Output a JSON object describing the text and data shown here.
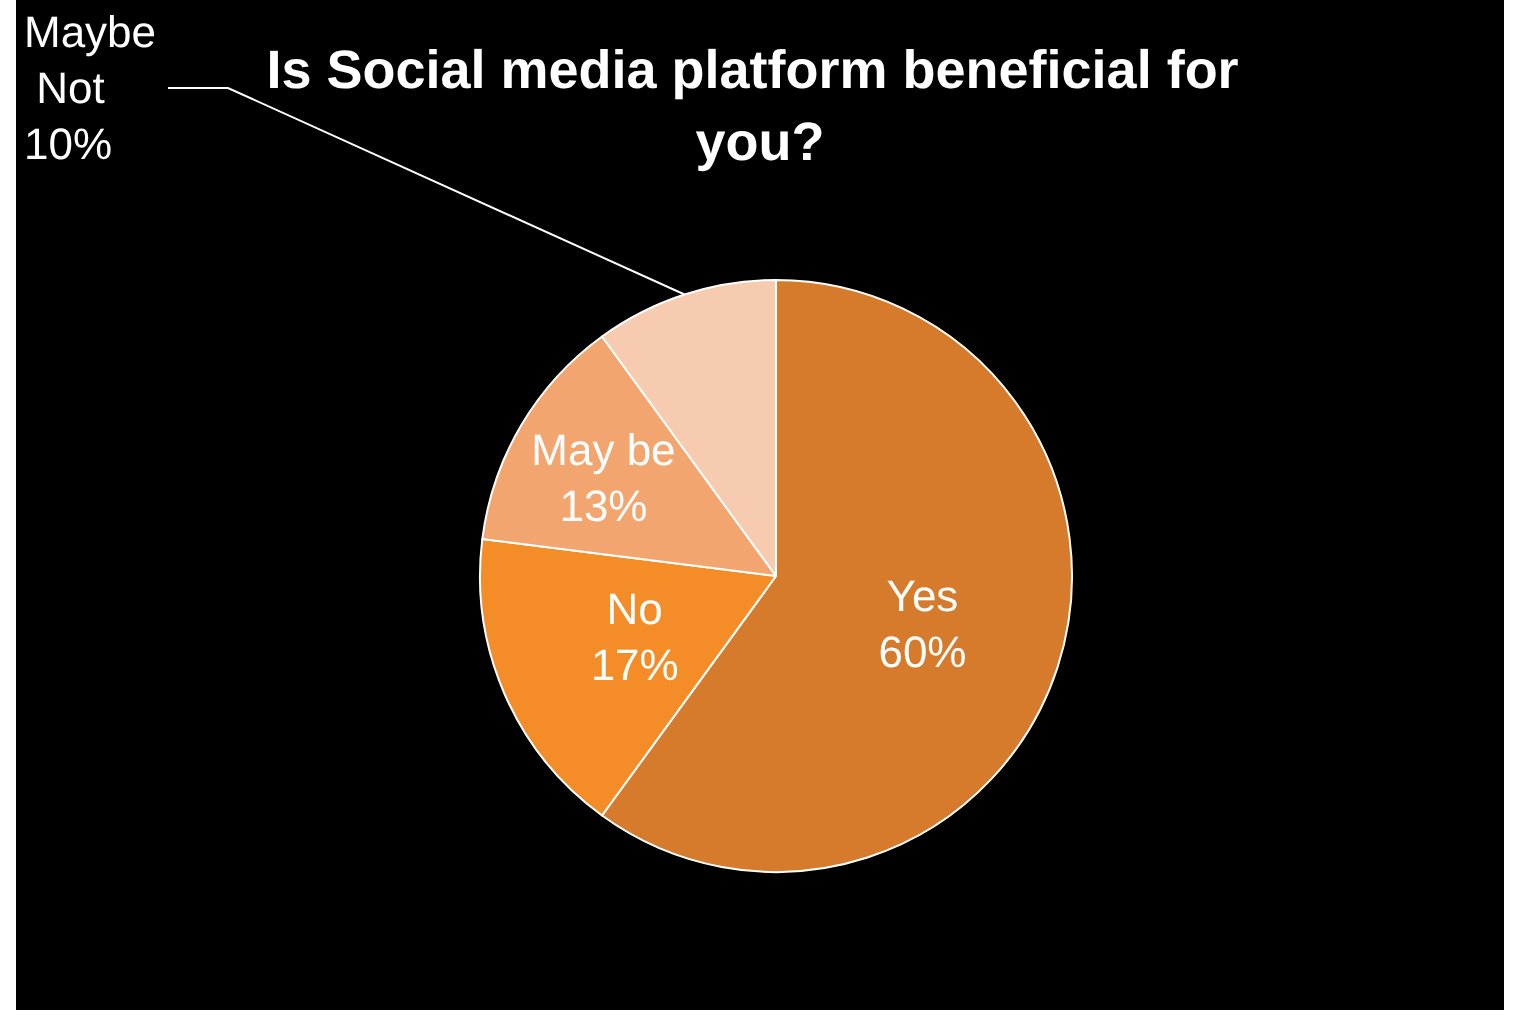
{
  "chart_data": {
    "type": "pie",
    "title": "Is Social media platform beneficial for you?",
    "categories": [
      "Yes",
      "No",
      "May be",
      "Maybe Not"
    ],
    "values": [
      60,
      17,
      13,
      10
    ],
    "value_labels": [
      "60%",
      "17%",
      "13%",
      "10%"
    ],
    "colors": [
      "#d67a2c",
      "#f48d28",
      "#f3a570",
      "#f6cbb0"
    ],
    "legend": false
  }
}
